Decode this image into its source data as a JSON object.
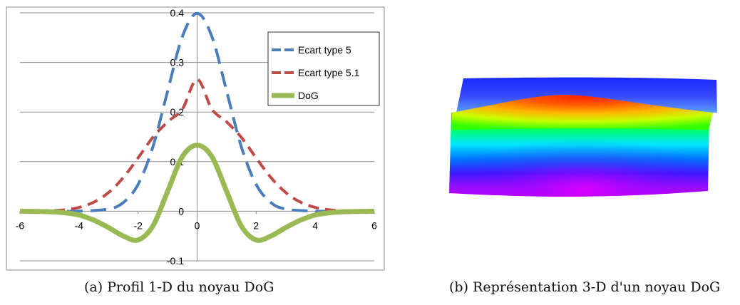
{
  "chart_data": [
    {
      "type": "line",
      "title": "",
      "xlabel": "",
      "ylabel": "",
      "xlim": [
        -6,
        6
      ],
      "ylim": [
        -0.1,
        0.4
      ],
      "x_ticks": [
        "-6",
        "-4",
        "-2",
        "0",
        "2",
        "4",
        "6"
      ],
      "y_ticks": [
        "-0.1",
        "0",
        "0.1",
        "0.2",
        "0.3",
        "0.4"
      ],
      "grid": "horizontal",
      "legend_position": "top-right",
      "series": [
        {
          "name": "Ecart type 5",
          "color": "#4a7ebb",
          "style": "dashed",
          "x": [
            -6,
            -5,
            -4,
            -3,
            -2.5,
            -2,
            -1.5,
            -1,
            -0.5,
            0,
            0.5,
            1,
            1.5,
            2,
            2.5,
            3,
            4,
            5,
            6
          ],
          "values": [
            0,
            0,
            0.0001,
            0.0044,
            0.0175,
            0.054,
            0.1295,
            0.242,
            0.3521,
            0.399,
            0.3521,
            0.242,
            0.1295,
            0.054,
            0.0175,
            0.0044,
            0.0001,
            0,
            0
          ]
        },
        {
          "name": "Ecart type 5.1",
          "color": "#be4b48",
          "style": "dashed",
          "x": [
            -6,
            -5,
            -4.5,
            -4,
            -3.5,
            -3,
            -2.5,
            -2,
            -1.5,
            -1,
            -0.5,
            0,
            0.5,
            1,
            1.5,
            2,
            2.5,
            3,
            3.5,
            4,
            4.5,
            5,
            6
          ],
          "values": [
            0,
            0.001,
            0.0028,
            0.0076,
            0.0182,
            0.0376,
            0.0679,
            0.1075,
            0.1488,
            0.1802,
            0.2058,
            0.266,
            0.2058,
            0.1802,
            0.1488,
            0.1075,
            0.0679,
            0.0376,
            0.0182,
            0.0076,
            0.0028,
            0.001,
            0
          ]
        },
        {
          "name": "DoG",
          "color": "#98b954",
          "style": "solid",
          "x": [
            -6,
            -5,
            -4.5,
            -4,
            -3.5,
            -3,
            -2.5,
            -2,
            -1.5,
            -1,
            -0.5,
            0,
            0.5,
            1,
            1.5,
            2,
            2.5,
            3,
            3.5,
            4,
            4.5,
            5,
            6
          ],
          "values": [
            0,
            -0.001,
            -0.003,
            -0.0075,
            -0.018,
            -0.033,
            -0.05,
            -0.058,
            -0.03,
            0.04,
            0.11,
            0.133,
            0.11,
            0.04,
            -0.03,
            -0.058,
            -0.05,
            -0.033,
            -0.018,
            -0.0075,
            -0.003,
            -0.001,
            0
          ]
        }
      ]
    }
  ],
  "captions": {
    "a": "(a) Profil 1-D du noyau DoG",
    "b": "(b) Représentation 3-D d'un noyau DoG"
  }
}
